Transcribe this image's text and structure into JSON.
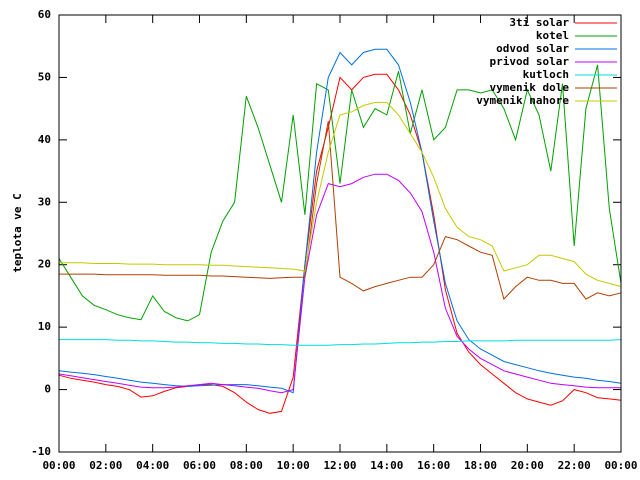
{
  "chart_data": {
    "type": "line",
    "ylabel": "teplota ve C",
    "x": [
      0,
      0.5,
      1,
      1.5,
      2,
      2.5,
      3,
      3.5,
      4,
      4.5,
      5,
      5.5,
      6,
      6.5,
      7,
      7.5,
      8,
      8.5,
      9,
      9.5,
      10,
      10.5,
      11,
      11.5,
      12,
      12.5,
      13,
      13.5,
      14,
      14.5,
      15,
      15.5,
      16,
      16.5,
      17,
      17.5,
      18,
      18.5,
      19,
      19.5,
      20,
      20.5,
      21,
      21.5,
      22,
      22.5,
      23,
      23.5,
      24
    ],
    "xlim": [
      0,
      24
    ],
    "xticks": [
      {
        "value": 0,
        "label": "00:00"
      },
      {
        "value": 2,
        "label": "02:00"
      },
      {
        "value": 4,
        "label": "04:00"
      },
      {
        "value": 6,
        "label": "06:00"
      },
      {
        "value": 8,
        "label": "08:00"
      },
      {
        "value": 10,
        "label": "10:00"
      },
      {
        "value": 12,
        "label": "12:00"
      },
      {
        "value": 14,
        "label": "14:00"
      },
      {
        "value": 16,
        "label": "16:00"
      },
      {
        "value": 18,
        "label": "18:00"
      },
      {
        "value": 20,
        "label": "20:00"
      },
      {
        "value": 22,
        "label": "22:00"
      },
      {
        "value": 24,
        "label": "00:00"
      }
    ],
    "ylim": [
      -10,
      60
    ],
    "yticks": [
      -10,
      0,
      10,
      20,
      30,
      40,
      50,
      60
    ],
    "legend": "top-right",
    "series": [
      {
        "name": "3ti solar",
        "color": "#ff0000",
        "values": [
          2.3,
          1.8,
          1.5,
          1.2,
          0.8,
          0.5,
          0,
          -1.2,
          -1,
          -0.3,
          0.3,
          0.5,
          0.8,
          0.8,
          0.5,
          -0.5,
          -2,
          -3.2,
          -3.8,
          -3.5,
          2,
          20,
          35,
          42,
          50,
          48,
          50,
          50.5,
          50.5,
          48,
          44,
          38,
          28,
          16,
          9,
          6,
          4,
          2.5,
          1,
          -0.5,
          -1.5,
          -2,
          -2.5,
          -1.8,
          0,
          -0.5,
          -1.3,
          -1.5,
          -1.7
        ]
      },
      {
        "name": "kotel",
        "color": "#00a000",
        "values": [
          21,
          18,
          15,
          13.5,
          12.8,
          12,
          11.5,
          11.2,
          15,
          12.5,
          11.5,
          11,
          12,
          22,
          27,
          30,
          47,
          42,
          36,
          30,
          44,
          28,
          49,
          48,
          33,
          48,
          42,
          45,
          44,
          51,
          41,
          48,
          40,
          42,
          48,
          48,
          47.5,
          48,
          45,
          40,
          48,
          44,
          35,
          49,
          23,
          45,
          52,
          29,
          17
        ]
      },
      {
        "name": "odvod solar",
        "color": "#0070e0",
        "values": [
          3,
          2.8,
          2.6,
          2.4,
          2.1,
          1.8,
          1.5,
          1.2,
          1,
          0.8,
          0.6,
          0.5,
          0.6,
          0.7,
          0.8,
          0.8,
          0.8,
          0.6,
          0.4,
          0.2,
          -0.5,
          20,
          38,
          50,
          54,
          52,
          54,
          54.5,
          54.5,
          52,
          46,
          38,
          27,
          17,
          11,
          8,
          6.5,
          5.5,
          4.5,
          4,
          3.5,
          3,
          2.6,
          2.3,
          2,
          1.8,
          1.5,
          1.3,
          1
        ]
      },
      {
        "name": "privod solar",
        "color": "#c000ff",
        "values": [
          2.5,
          2.2,
          1.9,
          1.6,
          1.3,
          1,
          0.7,
          0.4,
          0.3,
          0.3,
          0.4,
          0.6,
          0.8,
          1,
          0.8,
          0.6,
          0.4,
          0.2,
          -0.2,
          -0.5,
          0,
          18,
          28,
          33,
          32.5,
          33,
          34,
          34.5,
          34.5,
          33.5,
          31.5,
          28.5,
          22,
          13,
          8.5,
          6.5,
          5,
          4,
          3,
          2.5,
          2,
          1.5,
          1,
          0.8,
          0.6,
          0.4,
          0.3,
          0.3,
          0.3
        ]
      },
      {
        "name": "kutloch",
        "color": "#00dddd",
        "values": [
          8,
          8,
          8,
          8,
          8,
          7.9,
          7.9,
          7.8,
          7.8,
          7.7,
          7.6,
          7.6,
          7.5,
          7.5,
          7.4,
          7.4,
          7.3,
          7.3,
          7.2,
          7.2,
          7.1,
          7.1,
          7.1,
          7.1,
          7.2,
          7.2,
          7.3,
          7.3,
          7.4,
          7.5,
          7.5,
          7.6,
          7.6,
          7.7,
          7.7,
          7.8,
          7.8,
          7.8,
          7.8,
          7.9,
          7.9,
          7.9,
          7.9,
          7.9,
          7.9,
          7.9,
          7.9,
          7.9,
          8
        ]
      },
      {
        "name": "vymenik dole",
        "color": "#b04000",
        "values": [
          18.5,
          18.5,
          18.5,
          18.5,
          18.4,
          18.4,
          18.4,
          18.4,
          18.4,
          18.3,
          18.3,
          18.3,
          18.3,
          18.2,
          18.2,
          18.1,
          18,
          17.9,
          17.8,
          17.9,
          18,
          18,
          33,
          43,
          18,
          17,
          15.8,
          16.5,
          17,
          17.5,
          18,
          18,
          20,
          24.5,
          24,
          23,
          22,
          21.5,
          14.5,
          16.5,
          18,
          17.5,
          17.5,
          17,
          17,
          14.5,
          15.5,
          15,
          15.5
        ]
      },
      {
        "name": "vymenik nahore",
        "color": "#c8c800",
        "values": [
          20.3,
          20.3,
          20.3,
          20.2,
          20.2,
          20.2,
          20.1,
          20.1,
          20.1,
          20,
          20,
          20,
          20,
          19.9,
          19.9,
          19.8,
          19.7,
          19.6,
          19.5,
          19.4,
          19.3,
          19,
          30,
          38,
          44,
          44.5,
          45.5,
          46,
          46,
          44,
          41,
          38,
          34,
          29,
          26,
          24.5,
          24,
          23,
          19,
          19.5,
          20,
          21.5,
          21.5,
          21,
          20.5,
          18.5,
          17.5,
          17,
          16.5
        ]
      }
    ]
  }
}
